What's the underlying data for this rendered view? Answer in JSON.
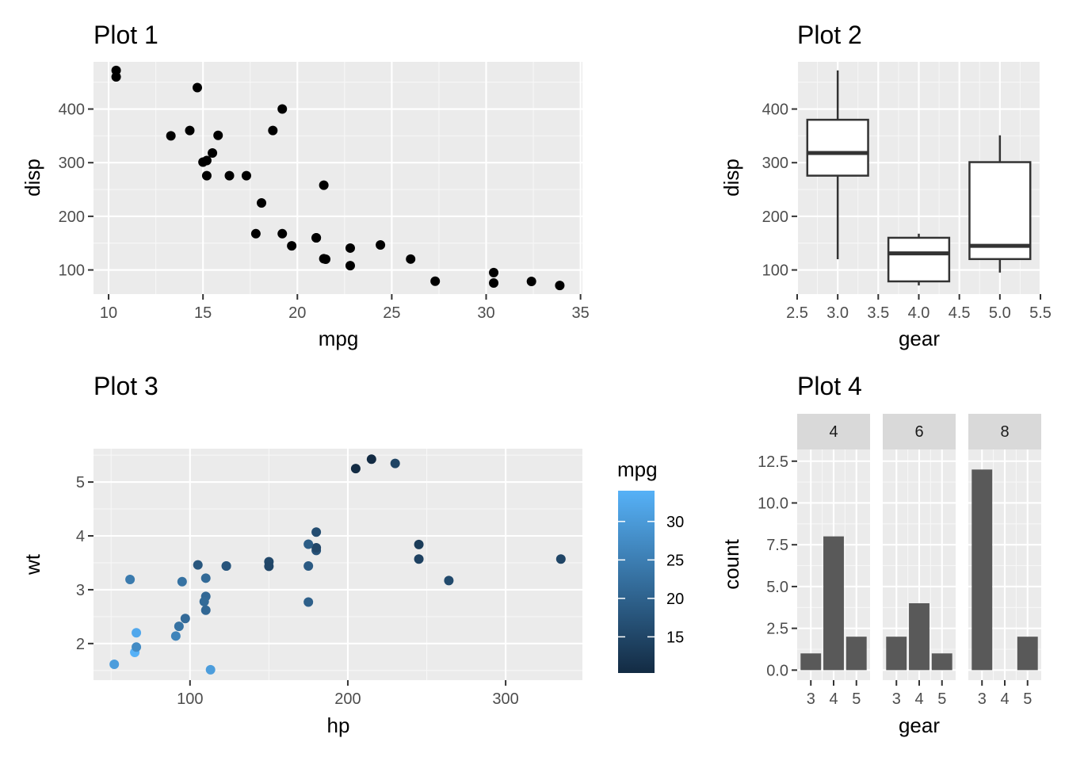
{
  "chart_data": [
    {
      "type": "scatter",
      "title": "Plot 1",
      "xlabel": "mpg",
      "ylabel": "disp",
      "xlim": [
        9.2,
        35.1
      ],
      "ylim": [
        55,
        488
      ],
      "xticks": [
        10,
        15,
        20,
        25,
        30,
        35
      ],
      "yticks": [
        100,
        200,
        300,
        400
      ],
      "grid": true,
      "points": [
        {
          "x": 21,
          "y": 160
        },
        {
          "x": 21,
          "y": 160
        },
        {
          "x": 22.8,
          "y": 108
        },
        {
          "x": 21.4,
          "y": 258
        },
        {
          "x": 18.7,
          "y": 360
        },
        {
          "x": 18.1,
          "y": 225
        },
        {
          "x": 14.3,
          "y": 360
        },
        {
          "x": 24.4,
          "y": 146.7
        },
        {
          "x": 22.8,
          "y": 140.8
        },
        {
          "x": 19.2,
          "y": 167.6
        },
        {
          "x": 17.8,
          "y": 167.6
        },
        {
          "x": 16.4,
          "y": 275.8
        },
        {
          "x": 17.3,
          "y": 275.8
        },
        {
          "x": 15.2,
          "y": 275.8
        },
        {
          "x": 10.4,
          "y": 472
        },
        {
          "x": 10.4,
          "y": 460
        },
        {
          "x": 14.7,
          "y": 440
        },
        {
          "x": 32.4,
          "y": 78.7
        },
        {
          "x": 30.4,
          "y": 75.7
        },
        {
          "x": 33.9,
          "y": 71.1
        },
        {
          "x": 21.5,
          "y": 120.1
        },
        {
          "x": 15.5,
          "y": 318
        },
        {
          "x": 15.2,
          "y": 304
        },
        {
          "x": 13.3,
          "y": 350
        },
        {
          "x": 19.2,
          "y": 400
        },
        {
          "x": 27.3,
          "y": 79
        },
        {
          "x": 26,
          "y": 120.3
        },
        {
          "x": 30.4,
          "y": 95.1
        },
        {
          "x": 15.8,
          "y": 351
        },
        {
          "x": 19.7,
          "y": 145
        },
        {
          "x": 15,
          "y": 301
        },
        {
          "x": 21.4,
          "y": 121
        }
      ]
    },
    {
      "type": "box",
      "title": "Plot 2",
      "xlabel": "gear",
      "ylabel": "disp",
      "xlim": [
        2.5,
        5.5
      ],
      "ylim": [
        55,
        488
      ],
      "xticks": [
        "2.5",
        "3.0",
        "3.5",
        "4.0",
        "4.5",
        "5.0",
        "5.5"
      ],
      "yticks": [
        100,
        200,
        300,
        400
      ],
      "grid": true,
      "boxes": [
        {
          "x": 3,
          "min": 120.1,
          "q1": 275.8,
          "median": 318,
          "q3": 380,
          "max": 472
        },
        {
          "x": 4,
          "min": 71.1,
          "q1": 78.7,
          "median": 130.9,
          "q3": 160,
          "max": 167.6
        },
        {
          "x": 5,
          "min": 95.1,
          "q1": 120.3,
          "median": 145,
          "q3": 301,
          "max": 351
        }
      ]
    },
    {
      "type": "scatter",
      "title": "Plot 3",
      "xlabel": "hp",
      "ylabel": "wt",
      "xlim": [
        38.85,
        348.65
      ],
      "ylim": [
        1.32,
        5.62
      ],
      "xticks": [
        100,
        200,
        300
      ],
      "yticks": [
        2,
        3,
        4,
        5
      ],
      "grid": true,
      "color_by": "mpg",
      "legend": {
        "title": "mpg",
        "ticks": [
          15,
          20,
          25,
          30
        ],
        "min": 10.4,
        "max": 33.9,
        "low_color": "#132B43",
        "high_color": "#56B1F7",
        "position": "right"
      },
      "points": [
        {
          "x": 110,
          "y": 2.62,
          "mpg": 21
        },
        {
          "x": 110,
          "y": 2.875,
          "mpg": 21
        },
        {
          "x": 93,
          "y": 2.32,
          "mpg": 22.8
        },
        {
          "x": 110,
          "y": 3.215,
          "mpg": 21.4
        },
        {
          "x": 175,
          "y": 3.44,
          "mpg": 18.7
        },
        {
          "x": 105,
          "y": 3.46,
          "mpg": 18.1
        },
        {
          "x": 245,
          "y": 3.57,
          "mpg": 14.3
        },
        {
          "x": 62,
          "y": 3.19,
          "mpg": 24.4
        },
        {
          "x": 95,
          "y": 3.15,
          "mpg": 22.8
        },
        {
          "x": 123,
          "y": 3.44,
          "mpg": 19.2
        },
        {
          "x": 123,
          "y": 3.44,
          "mpg": 17.8
        },
        {
          "x": 180,
          "y": 4.07,
          "mpg": 16.4
        },
        {
          "x": 180,
          "y": 3.73,
          "mpg": 17.3
        },
        {
          "x": 180,
          "y": 3.78,
          "mpg": 15.2
        },
        {
          "x": 205,
          "y": 5.25,
          "mpg": 10.4
        },
        {
          "x": 215,
          "y": 5.424,
          "mpg": 10.4
        },
        {
          "x": 230,
          "y": 5.345,
          "mpg": 14.7
        },
        {
          "x": 66,
          "y": 2.2,
          "mpg": 32.4
        },
        {
          "x": 52,
          "y": 1.615,
          "mpg": 30.4
        },
        {
          "x": 65,
          "y": 1.835,
          "mpg": 33.9
        },
        {
          "x": 97,
          "y": 2.465,
          "mpg": 21.5
        },
        {
          "x": 150,
          "y": 3.52,
          "mpg": 15.5
        },
        {
          "x": 150,
          "y": 3.435,
          "mpg": 15.2
        },
        {
          "x": 245,
          "y": 3.84,
          "mpg": 13.3
        },
        {
          "x": 175,
          "y": 3.845,
          "mpg": 19.2
        },
        {
          "x": 66,
          "y": 1.935,
          "mpg": 27.3
        },
        {
          "x": 91,
          "y": 2.14,
          "mpg": 26
        },
        {
          "x": 113,
          "y": 1.513,
          "mpg": 30.4
        },
        {
          "x": 264,
          "y": 3.17,
          "mpg": 15.8
        },
        {
          "x": 175,
          "y": 2.77,
          "mpg": 19.7
        },
        {
          "x": 335,
          "y": 3.57,
          "mpg": 15
        },
        {
          "x": 109,
          "y": 2.78,
          "mpg": 21.4
        }
      ]
    },
    {
      "type": "bar",
      "title": "Plot 4",
      "xlabel": "gear",
      "ylabel": "count",
      "ylim": [
        -0.6,
        13.2
      ],
      "yticks": [
        "0.0",
        "2.5",
        "5.0",
        "7.5",
        "10.0",
        "12.5"
      ],
      "categories": [
        "3",
        "4",
        "5"
      ],
      "facets": [
        {
          "label": "4",
          "values": [
            1,
            8,
            2
          ]
        },
        {
          "label": "6",
          "values": [
            2,
            4,
            1
          ]
        },
        {
          "label": "8",
          "values": [
            12,
            0,
            2
          ]
        }
      ],
      "grid": true
    }
  ]
}
